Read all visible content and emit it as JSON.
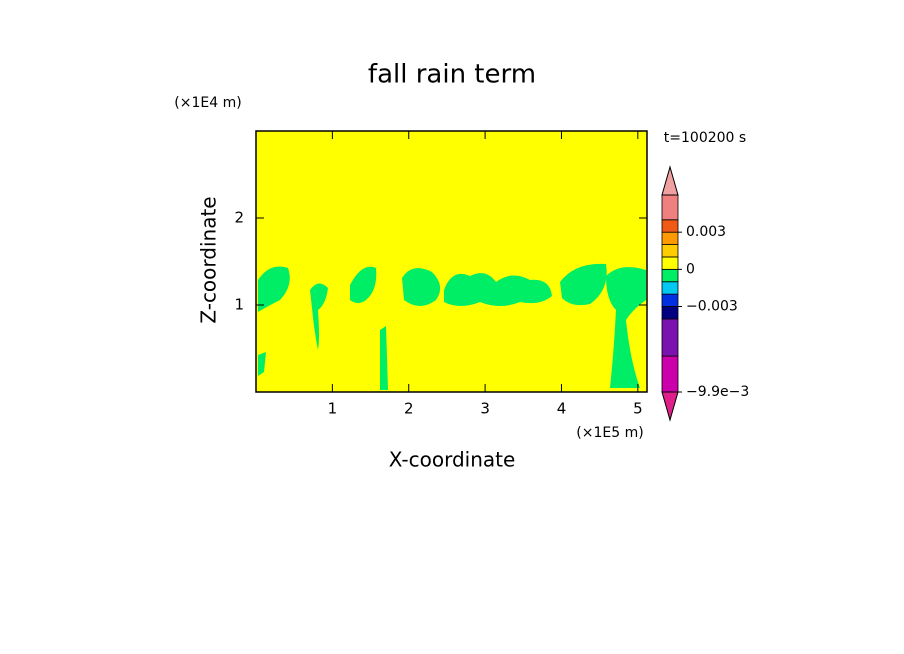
{
  "chart_data": {
    "type": "contour",
    "title": "fall rain term",
    "x_label": "X-coordinate",
    "y_label": "Z-coordinate",
    "x_unit": "(×1E5 m)",
    "y_unit": "(×1E4 m)",
    "time_label": "t=100200 s",
    "xlim": [
      0,
      5.12
    ],
    "ylim": [
      0,
      3
    ],
    "xticks": [
      1,
      2,
      3,
      4,
      5
    ],
    "yticks": [
      1,
      2
    ],
    "colorbar": {
      "levels": [
        -0.0099,
        -0.007,
        -0.004,
        -0.003,
        -0.002,
        -0.001,
        0,
        0.001,
        0.002,
        0.003,
        0.004,
        0.006
      ],
      "colors": [
        "#cc00aa",
        "#7a12b0",
        "#000080",
        "#0030e0",
        "#00c8f0",
        "#00ee66",
        "#ffff00",
        "#ffcc00",
        "#ff9900",
        "#f05a14",
        "#f08080"
      ],
      "under_color": "#e0208a",
      "over_color": "#f0a0a0",
      "ticks": [
        {
          "value": -0.0099,
          "label": "−9.9e−3"
        },
        {
          "value": -0.003,
          "label": "−0.003"
        },
        0,
        0.003
      ]
    }
  }
}
